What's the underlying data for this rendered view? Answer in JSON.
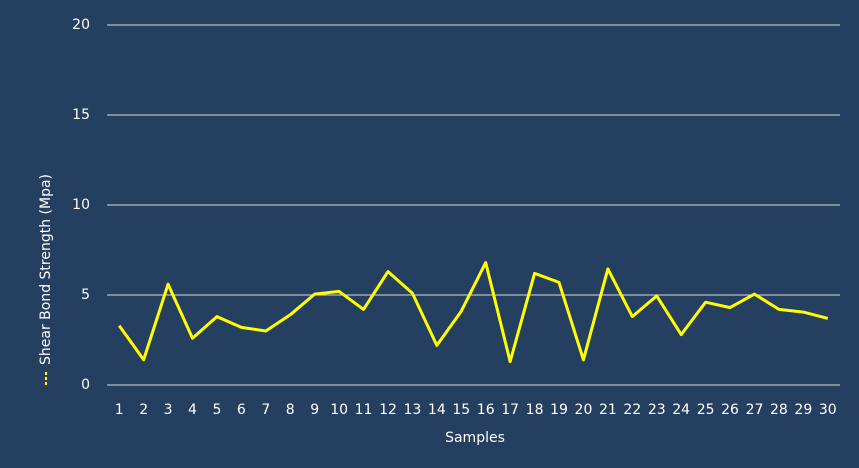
{
  "chart_data": {
    "type": "line",
    "xlabel": "Samples",
    "categories": [
      "1",
      "2",
      "3",
      "4",
      "5",
      "6",
      "7",
      "8",
      "9",
      "10",
      "11",
      "12",
      "13",
      "14",
      "15",
      "16",
      "17",
      "18",
      "19",
      "20",
      "21",
      "22",
      "23",
      "24",
      "25",
      "26",
      "27",
      "28",
      "29",
      "30"
    ],
    "series": [
      {
        "name": "Shear Bond Strength (Mpa)",
        "color": "#ffff00",
        "values": [
          3.3,
          1.4,
          5.6,
          2.6,
          3.8,
          3.2,
          3.0,
          3.9,
          5.05,
          5.2,
          4.2,
          6.3,
          5.1,
          2.2,
          4.1,
          6.8,
          1.3,
          6.2,
          5.7,
          1.4,
          6.45,
          3.8,
          4.95,
          2.8,
          4.6,
          4.3,
          5.05,
          4.2,
          4.05,
          3.7
        ]
      }
    ],
    "ylim": [
      0,
      20
    ],
    "yticks": [
      0,
      5,
      10,
      15,
      20
    ],
    "grid": true
  }
}
